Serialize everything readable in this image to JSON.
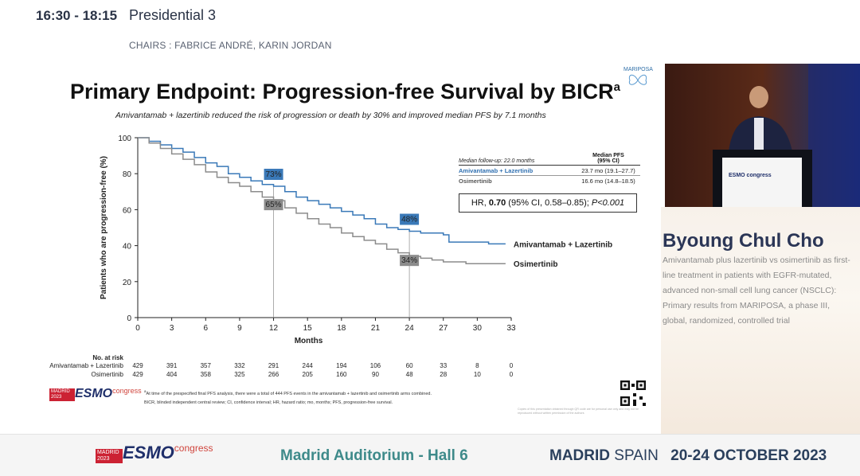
{
  "header": {
    "time": "16:30 - 18:15",
    "session": "Presidential 3",
    "chairs": "CHAIRS : FABRICE ANDRÉ, KARIN JORDAN"
  },
  "slide": {
    "logo_label": "MARIPOSA",
    "title": "Primary Endpoint: Progression-free Survival by BICR",
    "title_sup": "a",
    "subtitle": "Amivantamab + lazertinib reduced the risk of progression or death by 30% and improved median PFS by 7.1 months",
    "followup": "Median follow-up: 22.0 months",
    "median_header": "Median PFS\n(95% CI)",
    "median_pfs": [
      {
        "arm": "Amivantamab + Lazertinib",
        "value": "23.7 mo (19.1–27.7)",
        "color": "#2f6fb0"
      },
      {
        "arm": "Osimertinib",
        "value": "16.6 mo (14.8–18.5)",
        "color": "#666666"
      }
    ],
    "hr_prefix": "HR, ",
    "hr_value": "0.70",
    "hr_rest": " (95% CI, 0.58–0.85); ",
    "hr_p": "P<0.001",
    "footnote1": "At time of the prespecified final PFS analysis, there were a total of 444 PFS events in the amivantamab + lazertinib and osimertinib arms combined.",
    "footnote1_marker": "a",
    "footnote2": "BICR, blinded independent central review; CI, confidence interval; HR, hazard ratio; mo, months; PFS, progression-free survival.",
    "esmo_badge": "MADRID 2023",
    "esmo_word": "ESMO",
    "esmo_congress": "congress",
    "copyright": "Copies of this presentation obtained through QR code are for personal use only and may not be reproduced without written permission of the authors"
  },
  "speaker": {
    "name": "Byoung Chul Cho",
    "talk": "Amivantamab plus lazertinib vs osimertinib as first-line treatment in patients with EGFR-mutated, advanced non-small cell lung cancer (NSCLC): Primary results from MARIPOSA, a phase III, global, randomized, controlled trial"
  },
  "video": {
    "podium_label": "ESMO congress"
  },
  "footer": {
    "esmo_badge": "MADRID 2023",
    "esmo_word": "ESMO",
    "esmo_congress": "congress",
    "hall": "Madrid Auditorium - Hall 6",
    "city_bold": "MADRID",
    "city_rest": " SPAIN",
    "dates": "20-24 OCTOBER 2023"
  },
  "chart_data": {
    "type": "line",
    "xlabel": "Months",
    "ylabel": "Patients who are progression-free (%)",
    "xlim": [
      0,
      33
    ],
    "ylim": [
      0,
      100
    ],
    "xticks": [
      0,
      3,
      6,
      9,
      12,
      15,
      18,
      21,
      24,
      27,
      30,
      33
    ],
    "yticks": [
      0,
      20,
      40,
      60,
      80,
      100
    ],
    "series": [
      {
        "name": "Amivantamab + Lazertinib",
        "color": "#3a79b8",
        "x": [
          0,
          1,
          2,
          3,
          4,
          5,
          6,
          7,
          8,
          9,
          10,
          11,
          12,
          13,
          14,
          15,
          16,
          17,
          18,
          19,
          20,
          21,
          22,
          23,
          24,
          25,
          26,
          27,
          27.5,
          28,
          29,
          30,
          31,
          32.5
        ],
        "y": [
          100,
          98,
          96,
          94,
          92,
          89,
          86,
          84,
          80,
          78,
          76,
          74,
          73,
          70,
          67,
          65,
          63,
          61,
          59,
          57,
          55,
          52,
          50,
          49,
          48,
          47,
          47,
          46,
          42,
          42,
          42,
          42,
          41,
          41
        ]
      },
      {
        "name": "Osimertinib",
        "color": "#8c8c8c",
        "x": [
          0,
          1,
          2,
          3,
          4,
          5,
          6,
          7,
          8,
          9,
          10,
          11,
          12,
          13,
          14,
          15,
          16,
          17,
          18,
          19,
          20,
          21,
          22,
          23,
          24,
          25,
          26,
          27,
          28,
          29,
          30,
          31,
          32.5
        ],
        "y": [
          100,
          97,
          94,
          91,
          88,
          85,
          81,
          78,
          75,
          73,
          70,
          67,
          65,
          61,
          58,
          55,
          52,
          50,
          47,
          45,
          43,
          41,
          38,
          36,
          34,
          33,
          32,
          31,
          31,
          30,
          30,
          30,
          30
        ]
      }
    ],
    "annotations": [
      {
        "x": 12,
        "y": 73,
        "label": "73%",
        "series": "Amivantamab + Lazertinib"
      },
      {
        "x": 12,
        "y": 65,
        "label": "65%",
        "series": "Osimertinib"
      },
      {
        "x": 24,
        "y": 48,
        "label": "48%",
        "series": "Amivantamab + Lazertinib"
      },
      {
        "x": 24,
        "y": 34,
        "label": "34%",
        "series": "Osimertinib"
      }
    ],
    "series_labels": [
      "Amivantamab + Lazertinib",
      "Osimertinib"
    ],
    "at_risk_title": "No. at risk",
    "at_risk": [
      {
        "name": "Amivantamab + Lazertinib",
        "color": "#2f6fb0",
        "values": [
          429,
          391,
          357,
          332,
          291,
          244,
          194,
          106,
          60,
          33,
          8,
          0
        ]
      },
      {
        "name": "Osimertinib",
        "color": "#555555",
        "values": [
          429,
          404,
          358,
          325,
          266,
          205,
          160,
          90,
          48,
          28,
          10,
          0
        ]
      }
    ],
    "at_risk_x": [
      0,
      3,
      6,
      9,
      12,
      15,
      18,
      21,
      24,
      27,
      30,
      33
    ],
    "grid": false
  }
}
